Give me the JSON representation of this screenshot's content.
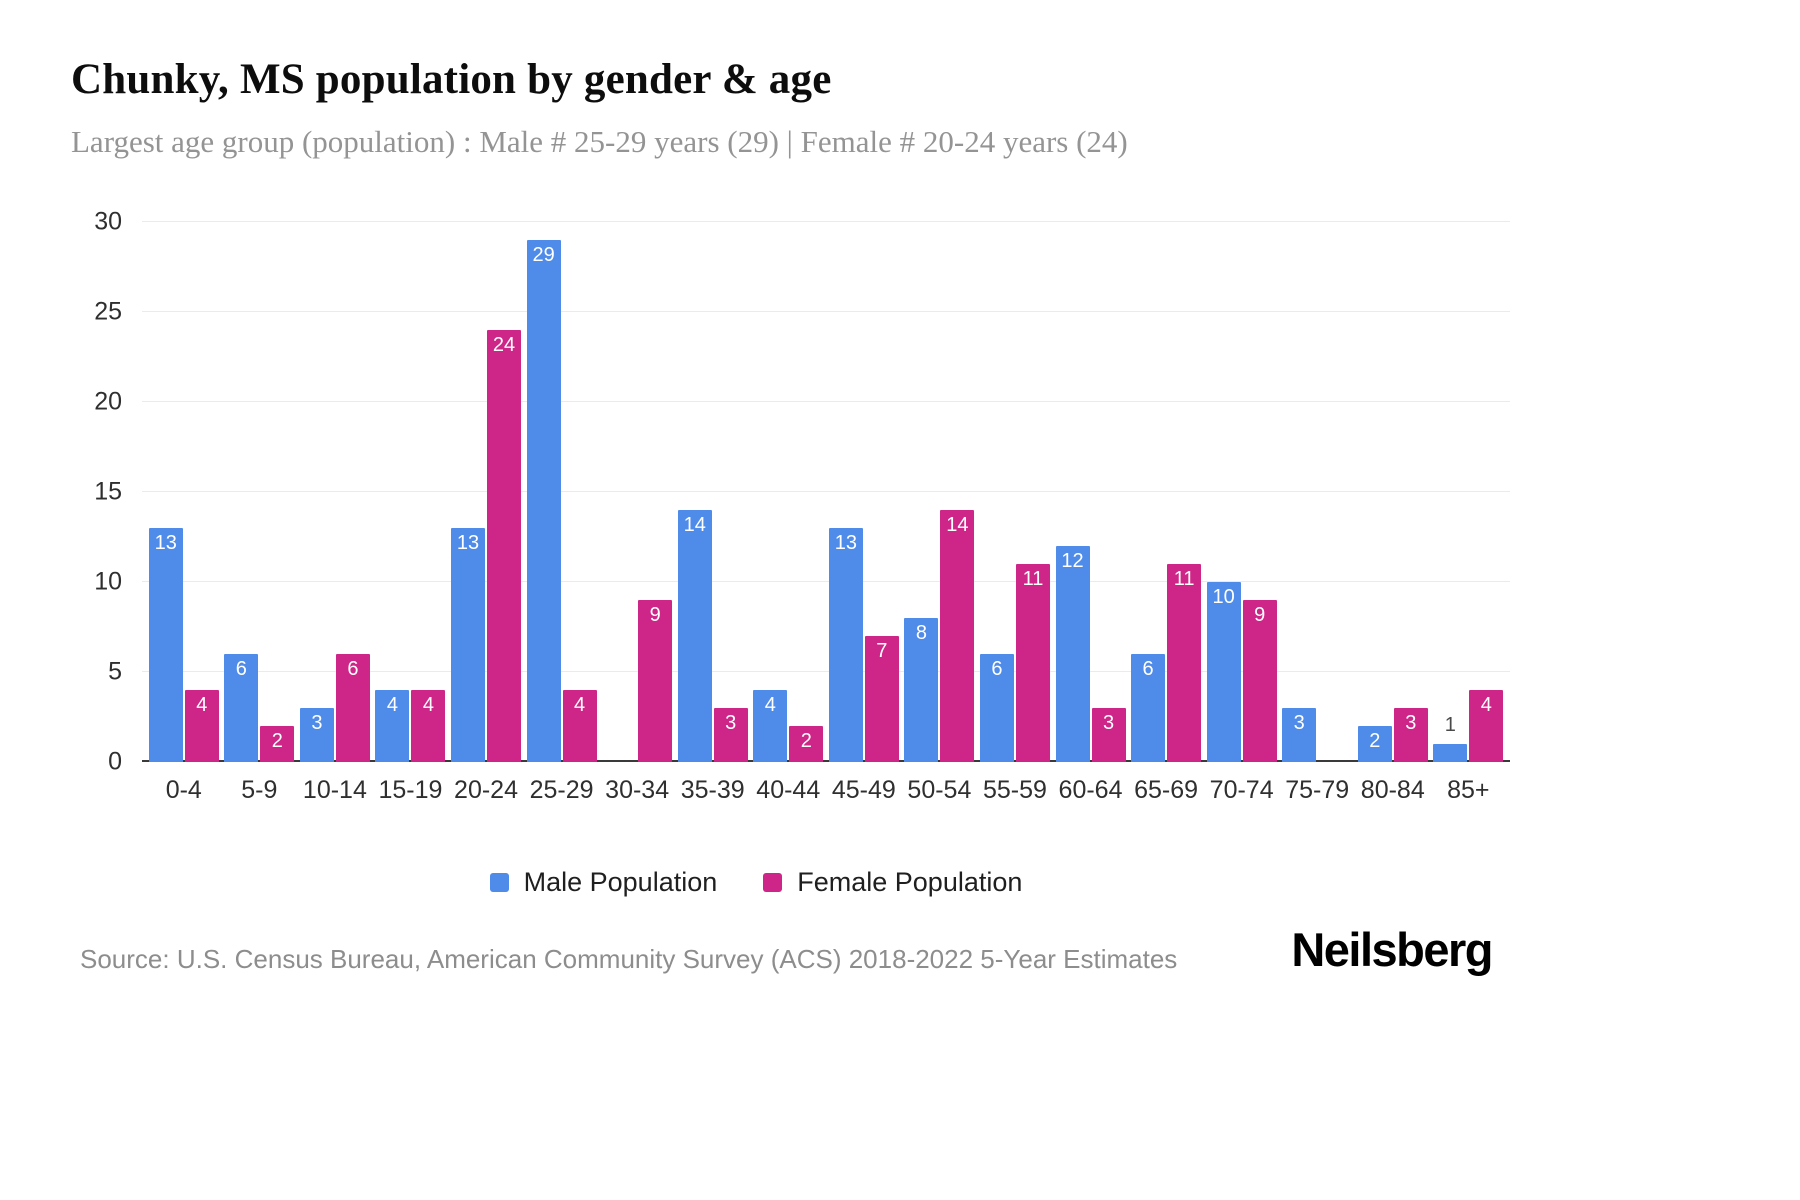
{
  "header": {
    "title": "Chunky, MS population by gender & age",
    "subtitle": "Largest age group (population) : Male # 25-29 years (29) | Female # 20-24 years (24)"
  },
  "chart_data": {
    "type": "bar",
    "title": "Chunky, MS population by gender & age",
    "categories": [
      "0-4",
      "5-9",
      "10-14",
      "15-19",
      "20-24",
      "25-29",
      "30-34",
      "35-39",
      "40-44",
      "45-49",
      "50-54",
      "55-59",
      "60-64",
      "65-69",
      "70-74",
      "75-79",
      "80-84",
      "85+"
    ],
    "series": [
      {
        "name": "Male Population",
        "key": "male",
        "color": "#4F8BE8",
        "values": [
          13,
          6,
          3,
          4,
          13,
          29,
          0,
          14,
          4,
          13,
          8,
          6,
          12,
          6,
          10,
          3,
          2,
          1
        ]
      },
      {
        "name": "Female Population",
        "key": "female",
        "color": "#CE2688",
        "values": [
          4,
          2,
          6,
          4,
          24,
          4,
          9,
          3,
          2,
          7,
          14,
          11,
          3,
          11,
          9,
          0,
          3,
          4
        ]
      }
    ],
    "xlabel": "",
    "ylabel": "",
    "ylim": [
      0,
      30
    ],
    "yticks": [
      0,
      5,
      10,
      15,
      20,
      25,
      30
    ],
    "grid": true,
    "legend_position": "bottom"
  },
  "legend": {
    "items": [
      {
        "label": "Male Population",
        "color": "#4F8BE8"
      },
      {
        "label": "Female Population",
        "color": "#CE2688"
      }
    ]
  },
  "footer": {
    "source": "Source: U.S. Census Bureau, American Community Survey (ACS) 2018-2022 5-Year Estimates",
    "brand": "Neilsberg"
  }
}
